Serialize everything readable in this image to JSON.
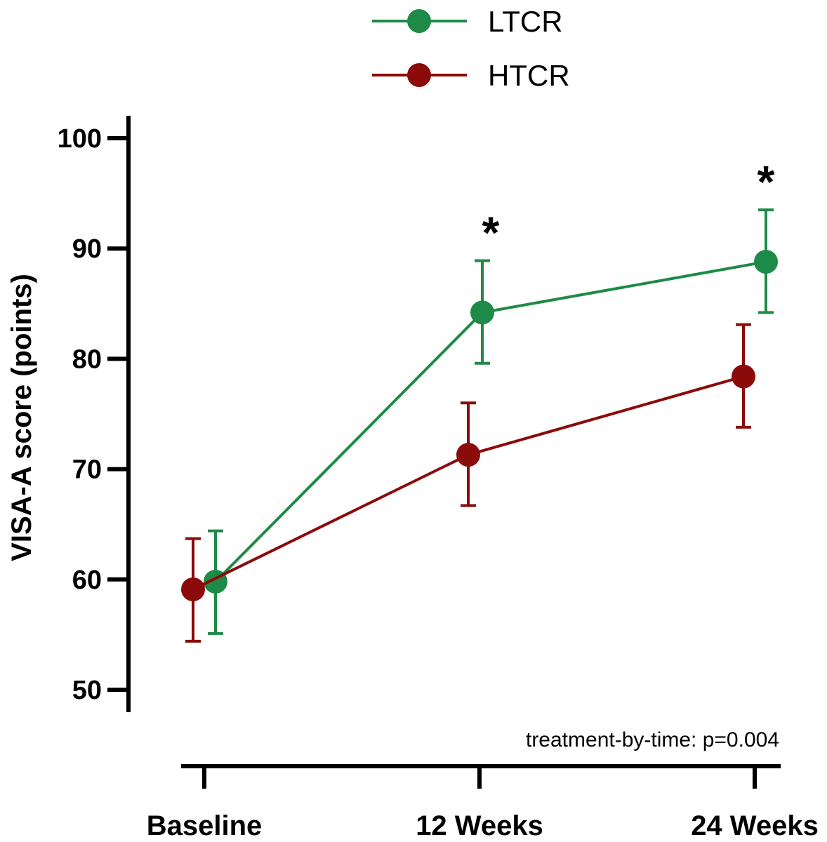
{
  "chart_data": {
    "type": "line",
    "categories": [
      "Baseline",
      "12 Weeks",
      "24 Weeks"
    ],
    "ylabel": "VISA-A score (points)",
    "ylim": [
      50,
      100
    ],
    "yticks": [
      "50",
      "60",
      "70",
      "80",
      "90",
      "100"
    ],
    "legend_position": "top",
    "annotation": "treatment-by-time: p=0.004",
    "significance": [
      "",
      "*",
      "*"
    ],
    "series": [
      {
        "name": "LTCR",
        "color": "#1e8a47",
        "values": [
          59.8,
          84.2,
          88.8
        ],
        "error_low": [
          55.1,
          79.6,
          84.2
        ],
        "error_high": [
          64.4,
          88.9,
          93.5
        ]
      },
      {
        "name": "HTCR",
        "color": "#8b0a0a",
        "values": [
          59.1,
          71.3,
          78.4
        ],
        "error_low": [
          54.4,
          66.7,
          73.8
        ],
        "error_high": [
          63.7,
          76.0,
          83.1
        ]
      }
    ]
  }
}
